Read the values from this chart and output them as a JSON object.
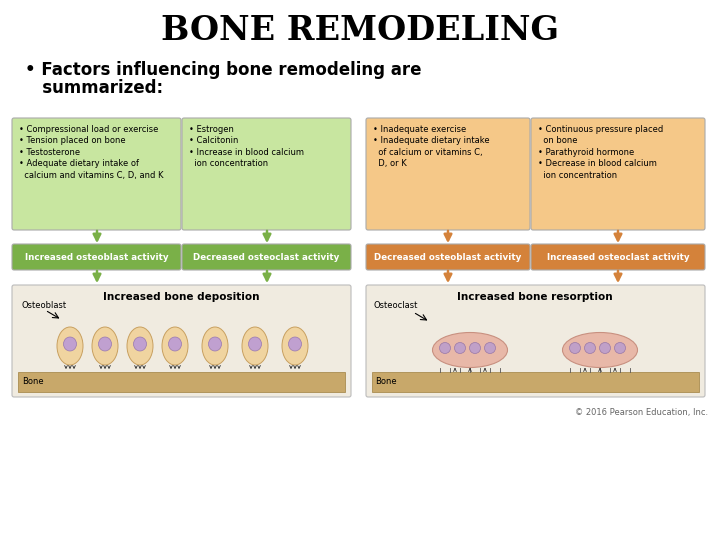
{
  "title": "BONE REMODELING",
  "bullet_text1": "• Factors influencing bone remodeling are",
  "bullet_text2": "   summarized:",
  "copyright": "© 2016 Pearson Education, Inc.",
  "bg_color": "#ffffff",
  "green_light": "#c8e6a0",
  "green_mid": "#a8cc78",
  "green_dark": "#7ab048",
  "orange_light": "#f5c888",
  "orange_mid": "#e8a855",
  "orange_dark": "#d4823a",
  "bullet_color": "#3366cc",
  "left_box1_text": "• Compressional load or exercise\n• Tension placed on bone\n• Testosterone\n• Adequate dietary intake of\n  calcium and vitamins C, D, and K",
  "left_box2_text": "• Estrogen\n• Calcitonin\n• Increase in blood calcium\n  ion concentration",
  "right_box1_text": "• Inadequate exercise\n• Inadequate dietary intake\n  of calcium or vitamins C,\n  D, or K",
  "right_box2_text": "• Continuous pressure placed\n  on bone\n• Parathyroid hormone\n• Decrease in blood calcium\n  ion concentration",
  "left_label1": "Increased osteoblast activity",
  "left_label2": "Decreased osteoclast activity",
  "right_label1": "Decreased osteoblast activity",
  "right_label2": "Increased osteoclast activity",
  "left_bottom_title": "Increased bone deposition",
  "right_bottom_title": "Increased bone resorption",
  "osteoblast_label": "Osteoblast",
  "osteoclast_label": "Osteoclast",
  "bone_label_l": "Bone",
  "bone_label_r": "Bone"
}
